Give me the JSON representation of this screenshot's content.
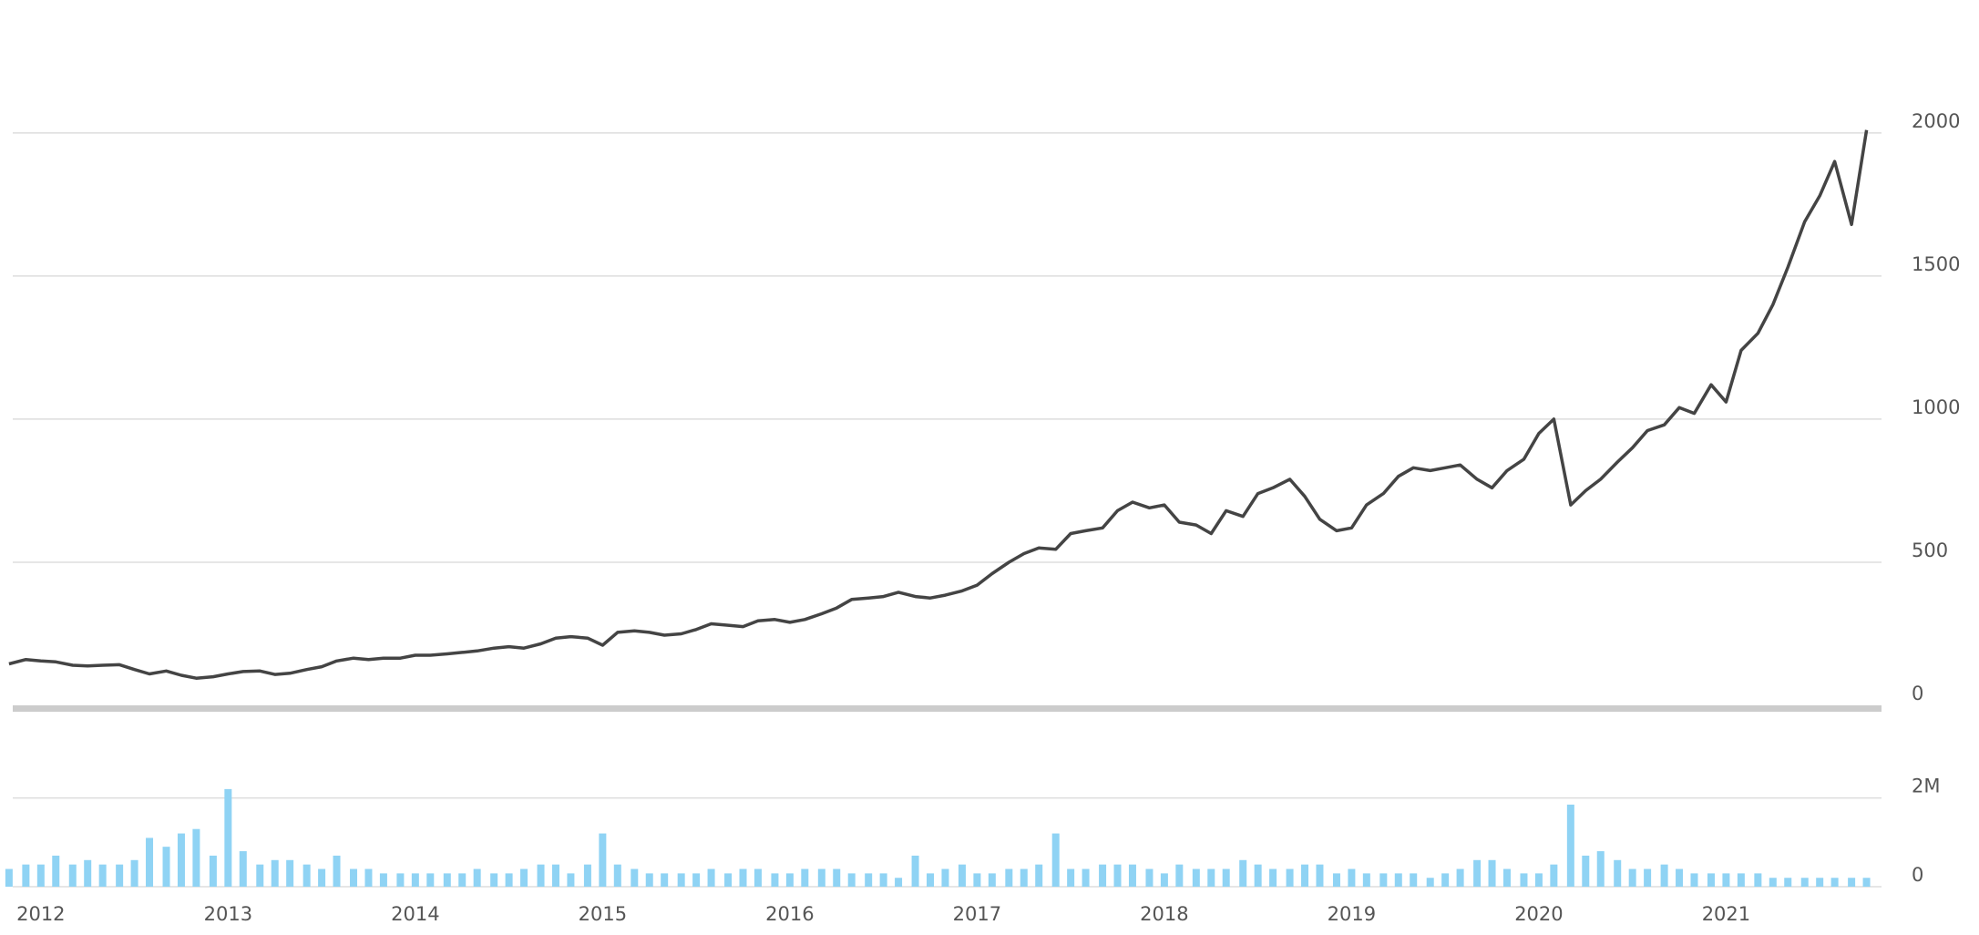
{
  "chart_data": {
    "type": "line",
    "x": [
      2011.83,
      2011.92,
      2012.0,
      2012.08,
      2012.17,
      2012.25,
      2012.33,
      2012.42,
      2012.5,
      2012.58,
      2012.67,
      2012.75,
      2012.83,
      2012.92,
      2013.0,
      2013.08,
      2013.17,
      2013.25,
      2013.33,
      2013.42,
      2013.5,
      2013.58,
      2013.67,
      2013.75,
      2013.83,
      2013.92,
      2014.0,
      2014.08,
      2014.17,
      2014.25,
      2014.33,
      2014.42,
      2014.5,
      2014.58,
      2014.67,
      2014.75,
      2014.83,
      2014.92,
      2015.0,
      2015.08,
      2015.17,
      2015.25,
      2015.33,
      2015.42,
      2015.5,
      2015.58,
      2015.67,
      2015.75,
      2015.83,
      2015.92,
      2016.0,
      2016.08,
      2016.17,
      2016.25,
      2016.33,
      2016.42,
      2016.5,
      2016.58,
      2016.67,
      2016.75,
      2016.83,
      2016.92,
      2017.0,
      2017.08,
      2017.17,
      2017.25,
      2017.33,
      2017.42,
      2017.5,
      2017.58,
      2017.67,
      2017.75,
      2017.83,
      2017.92,
      2018.0,
      2018.08,
      2018.17,
      2018.25,
      2018.33,
      2018.42,
      2018.5,
      2018.58,
      2018.67,
      2018.75,
      2018.83,
      2018.92,
      2019.0,
      2019.08,
      2019.17,
      2019.25,
      2019.33,
      2019.42,
      2019.5,
      2019.58,
      2019.67,
      2019.75,
      2019.83,
      2019.92,
      2020.0,
      2020.08,
      2020.17,
      2020.25,
      2020.33,
      2020.42,
      2020.5,
      2020.58,
      2020.67,
      2020.75,
      2020.83,
      2020.92,
      2021.0,
      2021.08,
      2021.17,
      2021.25,
      2021.33,
      2021.42,
      2021.5,
      2021.58,
      2021.67,
      2021.75
    ],
    "series": [
      {
        "color": "#444444",
        "values": [
          145,
          160,
          155,
          152,
          140,
          138,
          140,
          142,
          125,
          110,
          120,
          105,
          95,
          100,
          110,
          118,
          120,
          108,
          112,
          125,
          135,
          155,
          165,
          160,
          165,
          165,
          175,
          175,
          180,
          185,
          190,
          200,
          205,
          200,
          215,
          235,
          240,
          235,
          210,
          255,
          260,
          255,
          245,
          250,
          265,
          285,
          280,
          275,
          295,
          300,
          290,
          300,
          320,
          340,
          370,
          375,
          380,
          395,
          380,
          375,
          385,
          400,
          420,
          460,
          500,
          530,
          550,
          545,
          600,
          610,
          620,
          680,
          710,
          690,
          700,
          640,
          630,
          600,
          680,
          660,
          740,
          760,
          790,
          730,
          650,
          610,
          620,
          700,
          740,
          800,
          830,
          820,
          830,
          840,
          790,
          760,
          820,
          860,
          950,
          1000,
          700,
          750,
          790,
          850,
          900,
          960,
          980,
          1040,
          1020,
          1120,
          1060,
          1240,
          1300,
          1400,
          1530,
          1690,
          1780,
          1900,
          1680,
          2010
        ]
      },
      {
        "type": "bar",
        "axis": "y2",
        "color": "#8fd3f4",
        "values": [
          400000,
          500000,
          500000,
          700000,
          500000,
          600000,
          500000,
          500000,
          600000,
          1100000,
          900000,
          1200000,
          1300000,
          700000,
          2200000,
          800000,
          500000,
          600000,
          600000,
          500000,
          400000,
          700000,
          400000,
          400000,
          300000,
          300000,
          300000,
          300000,
          300000,
          300000,
          400000,
          300000,
          300000,
          400000,
          500000,
          500000,
          300000,
          500000,
          1200000,
          500000,
          400000,
          300000,
          300000,
          300000,
          300000,
          400000,
          300000,
          400000,
          400000,
          300000,
          300000,
          400000,
          400000,
          400000,
          300000,
          300000,
          300000,
          200000,
          700000,
          300000,
          400000,
          500000,
          300000,
          300000,
          400000,
          400000,
          500000,
          1200000,
          400000,
          400000,
          500000,
          500000,
          500000,
          400000,
          300000,
          500000,
          400000,
          400000,
          400000,
          600000,
          500000,
          400000,
          400000,
          500000,
          500000,
          300000,
          400000,
          300000,
          300000,
          300000,
          300000,
          200000,
          300000,
          400000,
          600000,
          600000,
          400000,
          300000,
          300000,
          500000,
          1850000,
          700000,
          800000,
          600000,
          400000,
          400000,
          500000,
          400000,
          300000,
          300000,
          300000,
          300000,
          300000,
          200000,
          200000,
          200000,
          200000,
          200000,
          200000,
          200000
        ]
      }
    ],
    "xlim": [
      2011.85,
      2021.83
    ],
    "xticks": [
      2012,
      2013,
      2014,
      2015,
      2016,
      2017,
      2018,
      2019,
      2020,
      2021
    ],
    "ylim": [
      0,
      2200
    ],
    "yticks": [
      0,
      500,
      1000,
      1500,
      2000
    ],
    "y2lim": [
      0,
      2300000
    ],
    "y2ticks": [
      0,
      {
        "value": 2000000,
        "label": "2M"
      }
    ],
    "grid": true
  }
}
